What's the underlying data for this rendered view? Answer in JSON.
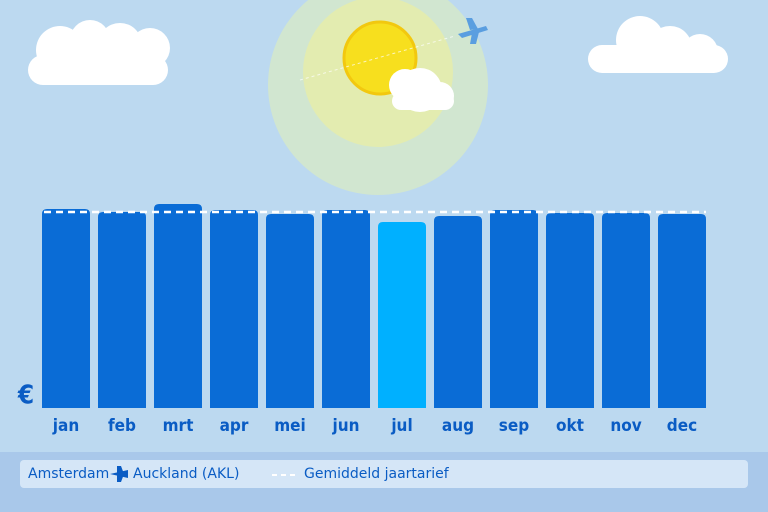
{
  "chart_data": {
    "type": "bar",
    "y_label": "€",
    "categories": [
      "jan",
      "feb",
      "mrt",
      "apr",
      "mei",
      "jun",
      "jul",
      "aug",
      "sep",
      "okt",
      "nov",
      "dec"
    ],
    "values": [
      199,
      196,
      204,
      198,
      194,
      198,
      186,
      192,
      198,
      195,
      195,
      194
    ],
    "colors": [
      "#0a6cd6",
      "#0a6cd6",
      "#0a6cd6",
      "#0a6cd6",
      "#0a6cd6",
      "#0a6cd6",
      "#00b0ff",
      "#0a6cd6",
      "#0a6cd6",
      "#0a6cd6",
      "#0a6cd6",
      "#0a6cd6"
    ],
    "ylim": [
      0,
      240
    ],
    "average": {
      "label": "Gemiddeld jaartarief",
      "value": 196,
      "color": "#ffffff"
    },
    "origin": "Amsterdam",
    "destination": "Auckland (AKL)"
  }
}
